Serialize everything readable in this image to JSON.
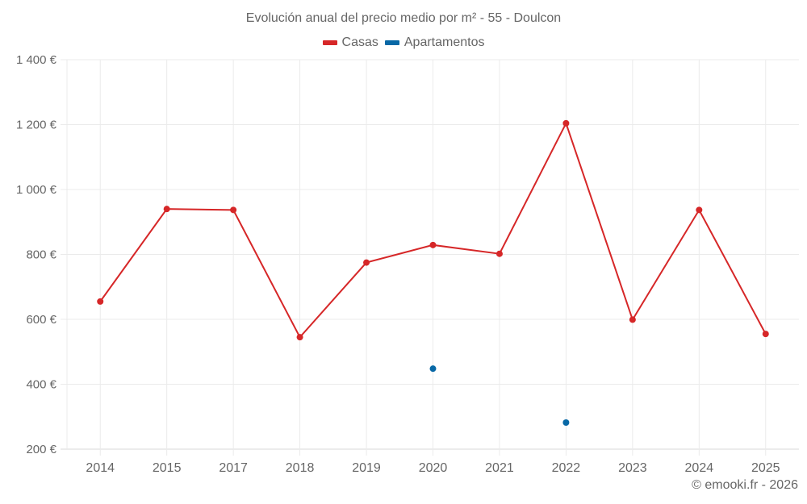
{
  "chart_data": {
    "type": "line",
    "title": "Evolución anual del precio medio por m² - 55 - Doulcon",
    "xlabel": "",
    "ylabel": "",
    "categories": [
      "2014",
      "2015",
      "2017",
      "2018",
      "2019",
      "2020",
      "2021",
      "2022",
      "2023",
      "2024",
      "2025"
    ],
    "series": [
      {
        "name": "Casas",
        "color": "#d62728",
        "values": [
          655,
          940,
          937,
          545,
          775,
          829,
          802,
          1204,
          599,
          937,
          555
        ]
      },
      {
        "name": "Apartamentos",
        "color": "#0868a6",
        "values": [
          null,
          null,
          null,
          null,
          null,
          448,
          null,
          282,
          null,
          null,
          null
        ]
      }
    ],
    "ylim": [
      200,
      1400
    ],
    "yticks": [
      200,
      400,
      600,
      800,
      1000,
      1200,
      1400
    ],
    "ytick_labels": [
      "200 €",
      "400 €",
      "600 €",
      "800 €",
      "1 000 €",
      "1 200 €",
      "1 400 €"
    ],
    "grid": true,
    "legend_position": "top"
  },
  "legend": {
    "items": [
      {
        "label": "Casas",
        "color": "#d62728"
      },
      {
        "label": "Apartamentos",
        "color": "#0868a6"
      }
    ]
  },
  "credit": "© emooki.fr - 2026"
}
